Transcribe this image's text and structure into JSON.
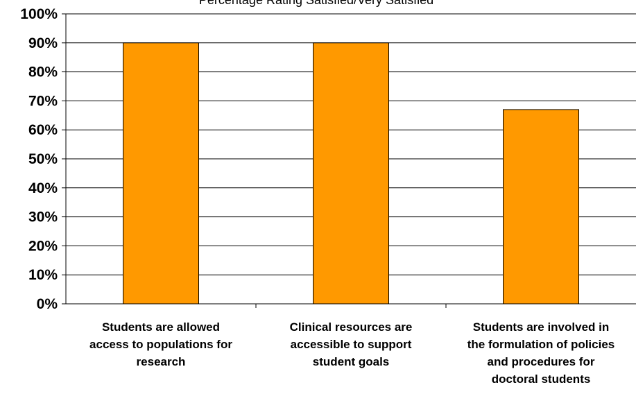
{
  "chart_data": {
    "type": "bar",
    "title": "Percentage Rating Satisfied/Very Satisfied",
    "categories": [
      [
        "Students are allowed",
        "access to populations for",
        "research"
      ],
      [
        "Clinical resources are",
        "accessible to support",
        "student goals"
      ],
      [
        "Students are involved in",
        "the formulation of policies",
        "and procedures for",
        "doctoral students"
      ]
    ],
    "values": [
      90,
      90,
      67
    ],
    "ylim": [
      0,
      100
    ],
    "yticks": [
      "0%",
      "10%",
      "20%",
      "30%",
      "40%",
      "50%",
      "60%",
      "70%",
      "80%",
      "90%",
      "100%"
    ],
    "grid": true,
    "bar_color": "#FF9900",
    "bar_stroke": "#000000",
    "xlabel": "",
    "ylabel": ""
  }
}
